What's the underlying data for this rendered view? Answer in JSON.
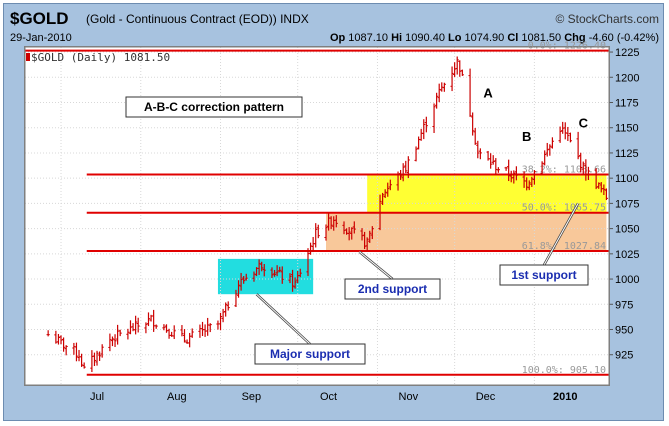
{
  "header": {
    "symbol": "$GOLD",
    "description": "(Gold - Continuous Contract (EOD)) INDX",
    "brand": "© StockCharts.com",
    "date": "29-Jan-2010",
    "open_label": "Op",
    "open_value": "1087.10",
    "high_label": "Hi",
    "high_value": "1090.40",
    "low_label": "Lo",
    "low_value": "1074.90",
    "close_label": "Cl",
    "close_value": "1081.50",
    "change_label": "Chg",
    "change_value": "-4.60 (-0.42%)"
  },
  "colors": {
    "frame": "#a7c2df",
    "candle": "#cc0000",
    "fib_line": "#e00000",
    "yellow_zone": "#ffff33",
    "orange_zone": "#f8c89a",
    "cyan_zone": "#22dde0",
    "annotation_text": "#1a2db0"
  },
  "chart_data": {
    "type": "ohlc",
    "legend": "$GOLD (Daily) 1081.50",
    "legend_placement": "top-left",
    "grid": true,
    "ylim": [
      895,
      1230
    ],
    "y_axis_side": "right",
    "y_ticks": [
      925,
      950,
      975,
      1000,
      1025,
      1050,
      1075,
      1100,
      1125,
      1150,
      1175,
      1200,
      1225
    ],
    "x_ticks": [
      "Jul",
      "Aug",
      "Sep",
      "Oct",
      "Nov",
      "Dec",
      "2010"
    ],
    "approx_closes": [
      {
        "date": "2009-06-26",
        "close": 945
      },
      {
        "date": "2009-07-08",
        "close": 925
      },
      {
        "date": "2009-07-10",
        "close": 910
      },
      {
        "date": "2009-07-20",
        "close": 940
      },
      {
        "date": "2009-08-05",
        "close": 960
      },
      {
        "date": "2009-08-18",
        "close": 940
      },
      {
        "date": "2009-08-31",
        "close": 955
      },
      {
        "date": "2009-09-08",
        "close": 995
      },
      {
        "date": "2009-09-17",
        "close": 1015
      },
      {
        "date": "2009-09-30",
        "close": 995
      },
      {
        "date": "2009-10-08",
        "close": 1045
      },
      {
        "date": "2009-10-15",
        "close": 1060
      },
      {
        "date": "2009-10-28",
        "close": 1035
      },
      {
        "date": "2009-11-03",
        "close": 1085
      },
      {
        "date": "2009-11-12",
        "close": 1110
      },
      {
        "date": "2009-11-25",
        "close": 1185
      },
      {
        "date": "2009-12-02",
        "close": 1215
      },
      {
        "date": "2009-12-03",
        "close": 1210
      },
      {
        "date": "2009-12-07",
        "close": 1165
      },
      {
        "date": "2009-12-10",
        "close": 1125
      },
      {
        "date": "2009-12-18",
        "close": 1110
      },
      {
        "date": "2009-12-29",
        "close": 1095
      },
      {
        "date": "2010-01-04",
        "close": 1118
      },
      {
        "date": "2010-01-11",
        "close": 1150
      },
      {
        "date": "2010-01-14",
        "close": 1140
      },
      {
        "date": "2010-01-20",
        "close": 1110
      },
      {
        "date": "2010-01-25",
        "close": 1095
      },
      {
        "date": "2010-01-29",
        "close": 1081.5
      }
    ],
    "fib_levels": [
      {
        "label": "0.0%: 1226.40",
        "value": 1226.4
      },
      {
        "label": "38.2%: 1103.66",
        "value": 1103.66
      },
      {
        "label": "50.0%: 1065.75",
        "value": 1065.75
      },
      {
        "label": "61.8%: 1027.84",
        "value": 1027.84
      },
      {
        "label": "100.0%: 905.10",
        "value": 905.1
      }
    ],
    "zones": [
      {
        "name": "yellow",
        "from_date": "2009-10-28",
        "to_date": "2010-01-29",
        "low": 1066,
        "high": 1103
      },
      {
        "name": "orange",
        "from_date": "2009-10-12",
        "to_date": "2010-01-29",
        "low": 1028,
        "high": 1066
      },
      {
        "name": "cyan",
        "from_date": "2009-08-31",
        "to_date": "2009-10-07",
        "low": 985,
        "high": 1020
      }
    ],
    "wave_labels": [
      {
        "text": "A",
        "date": "2009-12-14",
        "value": 1180
      },
      {
        "text": "B",
        "date": "2009-12-29",
        "value": 1137
      },
      {
        "text": "C",
        "date": "2010-01-20",
        "value": 1150
      }
    ],
    "pattern_title": "A-B-C correction pattern",
    "callouts": [
      {
        "text": "Major support",
        "target_date": "2009-09-15",
        "target_value": 985
      },
      {
        "text": "2nd support",
        "target_date": "2009-10-25",
        "target_value": 1027
      },
      {
        "text": "1st support",
        "target_date": "2010-01-18",
        "target_value": 1075
      }
    ]
  }
}
